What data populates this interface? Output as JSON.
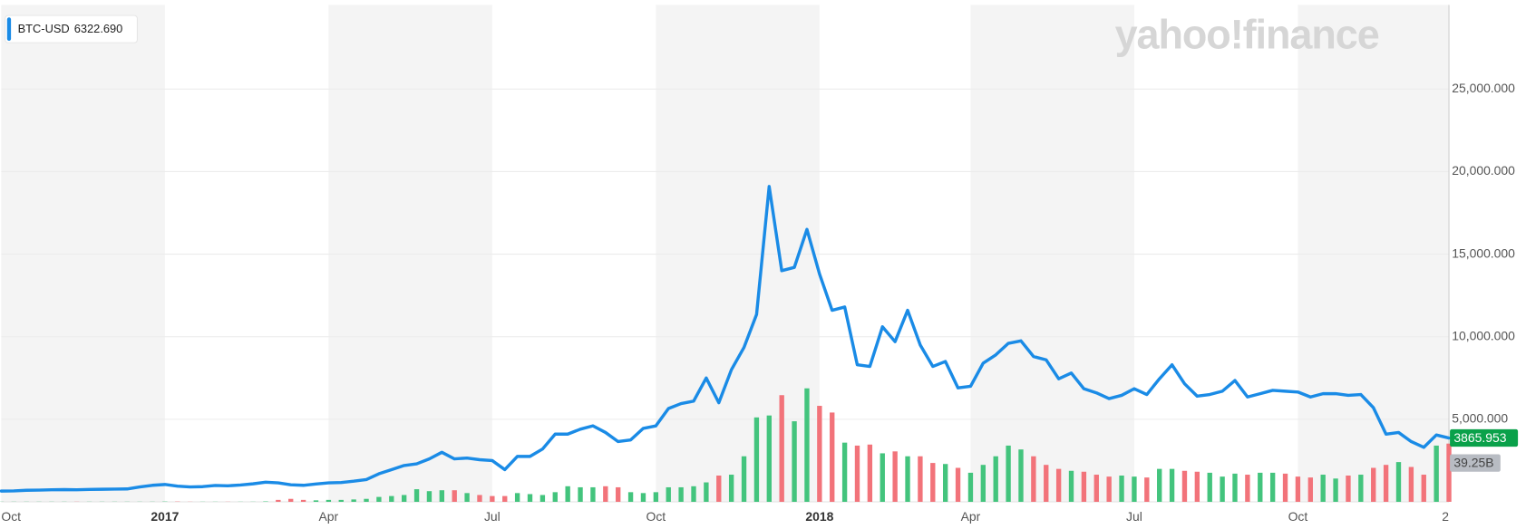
{
  "chart_data": {
    "type": "line",
    "watermark": "yahoo!finance",
    "legend": "top-left",
    "legend_value": "6322.690",
    "grid": true,
    "ylim": [
      0,
      30100
    ],
    "yticks": [
      {
        "value": 5000,
        "label": "5,000.000"
      },
      {
        "value": 10000,
        "label": "10,000.000"
      },
      {
        "value": 15000,
        "label": "15,000.000"
      },
      {
        "value": 20000,
        "label": "20,000.000"
      },
      {
        "value": 25000,
        "label": "25,000.000"
      }
    ],
    "y2lim": [
      0,
      335
    ],
    "categories": [
      "Oct",
      null,
      null,
      null,
      null,
      null,
      null,
      null,
      null,
      null,
      null,
      null,
      null,
      "2017",
      null,
      null,
      null,
      null,
      null,
      null,
      null,
      null,
      null,
      null,
      null,
      null,
      "Apr",
      null,
      null,
      null,
      null,
      null,
      null,
      null,
      null,
      null,
      null,
      null,
      null,
      "Jul",
      null,
      null,
      null,
      null,
      null,
      null,
      null,
      null,
      null,
      null,
      null,
      null,
      "Oct",
      null,
      null,
      null,
      null,
      null,
      null,
      null,
      null,
      null,
      null,
      null,
      null,
      "2018",
      null,
      null,
      null,
      null,
      null,
      null,
      null,
      null,
      null,
      null,
      null,
      "Apr",
      null,
      null,
      null,
      null,
      null,
      null,
      null,
      null,
      null,
      null,
      null,
      null,
      "Jul",
      null,
      null,
      null,
      null,
      null,
      null,
      null,
      null,
      null,
      null,
      null,
      null,
      "Oct",
      null,
      null,
      null,
      null,
      null,
      null,
      null,
      null,
      null,
      null,
      null,
      "2"
    ],
    "series": [
      {
        "name": "BTC-USD",
        "color": "#1a8be6",
        "values": [
          650,
          660,
          700,
          710,
          730,
          740,
          730,
          750,
          760,
          770,
          780,
          900,
          1000,
          1050,
          950,
          900,
          920,
          990,
          970,
          1020,
          1090,
          1190,
          1150,
          1030,
          1000,
          1080,
          1150,
          1170,
          1250,
          1350,
          1700,
          1950,
          2200,
          2300,
          2600,
          3000,
          2600,
          2650,
          2550,
          2500,
          1950,
          2750,
          2750,
          3200,
          4100,
          4100,
          4400,
          4600,
          4200,
          3650,
          3750,
          4450,
          4600,
          5650,
          5950,
          6100,
          7500,
          6000,
          8000,
          9350,
          11350,
          19100,
          14000,
          14200,
          16500,
          13800,
          11600,
          11800,
          8300,
          8200,
          10600,
          9700,
          11600,
          9500,
          8200,
          8500,
          6900,
          7000,
          8400,
          8900,
          9600,
          9750,
          8800,
          8600,
          7450,
          7800,
          6850,
          6600,
          6250,
          6450,
          6850,
          6500,
          7450,
          8300,
          7150,
          6400,
          6500,
          6700,
          7350,
          6350,
          6550,
          6750,
          6700,
          6650,
          6350,
          6550,
          6550,
          6450,
          6500,
          5700,
          4100,
          4200,
          3650,
          3300,
          4050,
          3865.953
        ]
      }
    ],
    "volume": {
      "axis": "y2",
      "up_color": "#43c47d",
      "down_color": "#f2737a",
      "last_value_label": "39.25B",
      "values": [
        0.1,
        0.1,
        0.1,
        0.1,
        0.1,
        0.1,
        0.1,
        0.1,
        0.1,
        0.1,
        0.1,
        0.1,
        0.1,
        0.2,
        0.2,
        0.1,
        0.1,
        0.1,
        0.1,
        0.1,
        0.1,
        0.3,
        1.3,
        2.0,
        1.3,
        1.0,
        1.3,
        1.3,
        1.6,
        2.0,
        3.3,
        3.9,
        4.6,
        8.5,
        7.2,
        7.8,
        7.8,
        5.9,
        4.6,
        3.9,
        3.9,
        5.9,
        5.2,
        4.6,
        6.5,
        10.5,
        9.8,
        9.8,
        10.5,
        9.8,
        6.5,
        5.9,
        6.5,
        9.8,
        9.8,
        10.5,
        13.1,
        17.7,
        18.3,
        30.7,
        56.9,
        58.2,
        71.9,
        54.3,
        76.5,
        64.7,
        60.2,
        39.9,
        37.9,
        38.6,
        32.7,
        34.0,
        30.7,
        30.7,
        26.2,
        25.5,
        22.9,
        19.6,
        24.9,
        30.7,
        37.9,
        35.3,
        30.7,
        24.9,
        22.2,
        20.9,
        20.3,
        18.3,
        17.0,
        17.7,
        17.0,
        16.4,
        22.2,
        22.2,
        20.9,
        20.3,
        19.6,
        17.0,
        19.0,
        18.3,
        19.6,
        19.6,
        19.0,
        17.0,
        16.4,
        18.3,
        15.7,
        17.7,
        18.3,
        22.9,
        24.9,
        26.8,
        23.5,
        18.3,
        37.9,
        39.25
      ]
    }
  }
}
